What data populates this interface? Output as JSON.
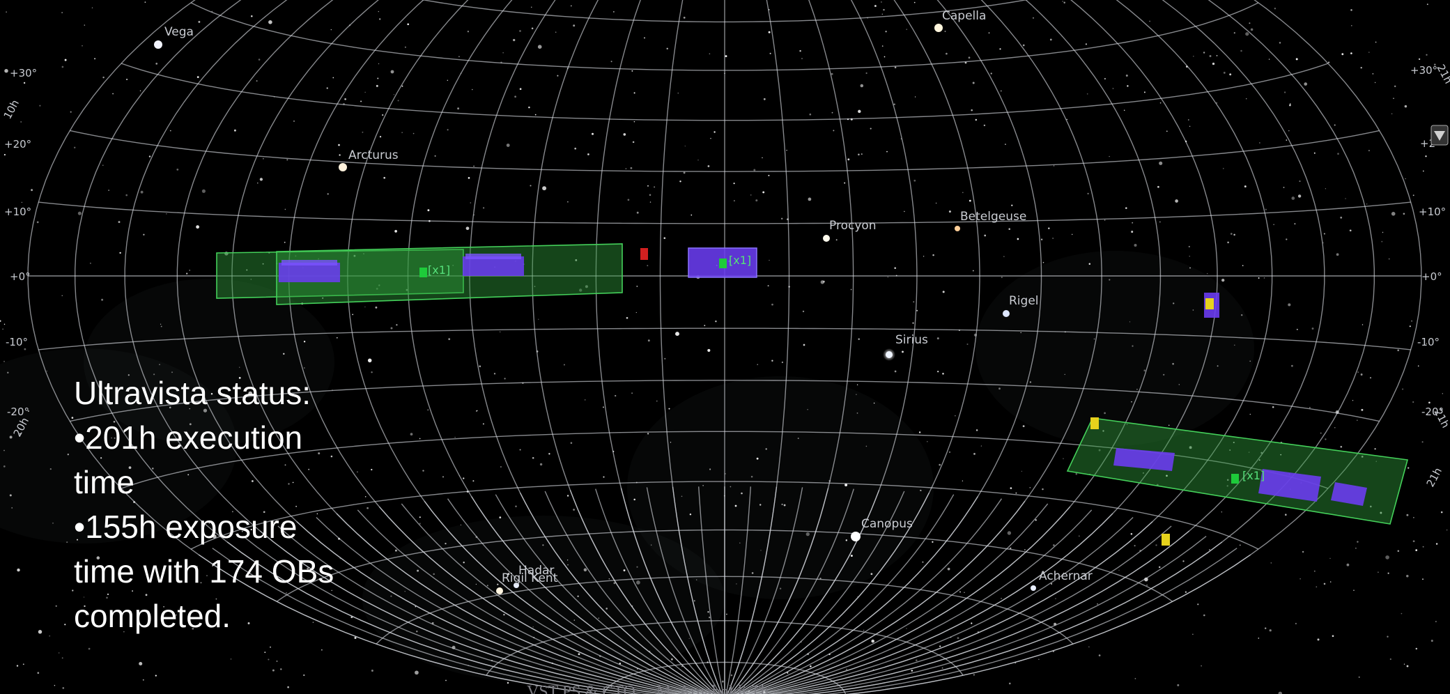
{
  "status_panel": {
    "title": "Ultravista status:",
    "bullet_1": "•201h execution time",
    "bullet_2": "•155h exposure time with 174 OBs completed."
  },
  "stars": [
    {
      "name": "Vega",
      "label": "Vega"
    },
    {
      "name": "Capella",
      "label": "Capella"
    },
    {
      "name": "Arcturus",
      "label": "Arcturus"
    },
    {
      "name": "Procyon",
      "label": "Procyon"
    },
    {
      "name": "Betelgeuse",
      "label": "Betelgeuse"
    },
    {
      "name": "Rigel",
      "label": "Rigel"
    },
    {
      "name": "Sirius",
      "label": "Sirius"
    },
    {
      "name": "Canopus",
      "label": "Canopus"
    },
    {
      "name": "Achernar",
      "label": "Achernar"
    },
    {
      "name": "Rigil Kent",
      "label": "Rigil Kent"
    },
    {
      "name": "Hadar",
      "label": "Hadar"
    }
  ],
  "declination_labels": {
    "left": [
      "+30°",
      "+20°",
      "+10°",
      "+0°",
      "-10°",
      "-20°"
    ],
    "right": [
      "+30°",
      "+2",
      "+10°",
      "+0°",
      "-10°",
      "-20°"
    ]
  },
  "ra_labels": [
    "10h",
    "20h",
    "21h",
    "21h",
    "21h"
  ],
  "ob_tags": [
    "[x1]",
    "[x1]",
    "[x1]"
  ],
  "footer": "VST PS & CTO ... M. Arnaboldi  Th...",
  "colors": {
    "background": "#000000",
    "grid": "#d8dbe2",
    "field_fill": "#2f9a3a",
    "field_stroke": "#44d05a",
    "pointing": "#6a3cf0",
    "marker_green": "#1ecb3a",
    "marker_red": "#d22020",
    "marker_yellow": "#e6d21c",
    "status_text": "#ffffff"
  }
}
